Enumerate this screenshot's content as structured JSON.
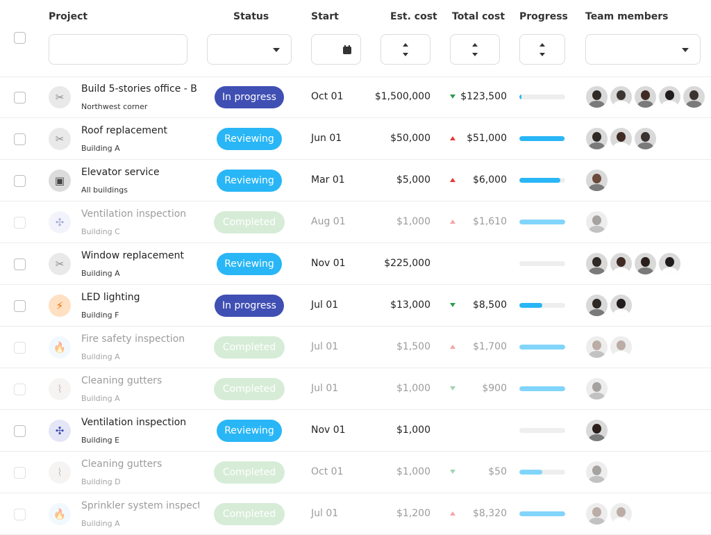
{
  "header": {
    "project": "Project",
    "status": "Status",
    "start": "Start",
    "est_cost": "Est. cost",
    "total_cost": "Total cost",
    "progress": "Progress",
    "team_members": "Team members"
  },
  "colors": {
    "in_progress": "#3f4fb3",
    "reviewing": "#29b6f6",
    "completed": "#a5d6a7",
    "progress_fill": "#29b6f6",
    "progress_fill_muted": "#81d4fa",
    "trend_up": "#e53935",
    "trend_down": "#2e9e4f"
  },
  "rows": [
    {
      "name": "Build 5-stories office - B",
      "location": "Northwest corner",
      "icon": "tools-icon",
      "status": "In progress",
      "start": "Oct 01",
      "est": "$1,500,000",
      "trend": "down",
      "total": "$123,500",
      "progress": 0.04,
      "muted": false,
      "team": [
        "#2f2a26",
        "#3b3633",
        "#402a24",
        "#201c1c",
        "#3a332f"
      ]
    },
    {
      "name": "Roof replacement",
      "location": "Building A",
      "icon": "tools-icon",
      "status": "Reviewing",
      "start": "Jun 01",
      "est": "$50,000",
      "trend": "up",
      "total": "$51,000",
      "progress": 0.98,
      "muted": false,
      "team": [
        "#2f2a26",
        "#402a24",
        "#3a332f"
      ]
    },
    {
      "name": "Elevator service",
      "location": "All buildings",
      "icon": "elevator-icon",
      "status": "Reviewing",
      "start": "Mar 01",
      "est": "$5,000",
      "trend": "up",
      "total": "$6,000",
      "progress": 0.9,
      "muted": false,
      "team": [
        "#6b4a3a"
      ]
    },
    {
      "name": "Ventilation inspection",
      "location": "Building C",
      "icon": "fan-icon",
      "status": "Completed",
      "start": "Aug 01",
      "est": "$1,000",
      "trend": "up",
      "total": "$1,610",
      "progress": 1.0,
      "muted": true,
      "team": [
        "#3a332f"
      ]
    },
    {
      "name": "Window replacement",
      "location": "Building A",
      "icon": "tools-icon",
      "status": "Reviewing",
      "start": "Nov 01",
      "est": "$225,000",
      "trend": "",
      "total": "",
      "progress": 0.0,
      "muted": false,
      "team": [
        "#2f2a26",
        "#402a24",
        "#2a1f1b",
        "#201c1c"
      ]
    },
    {
      "name": "LED lighting",
      "location": "Building F",
      "icon": "lightning-icon",
      "status": "In progress",
      "start": "Jul 01",
      "est": "$13,000",
      "trend": "down",
      "total": "$8,500",
      "progress": 0.5,
      "muted": false,
      "team": [
        "#2f2a26",
        "#201c1c"
      ]
    },
    {
      "name": "Fire safety inspection",
      "location": "Building A",
      "icon": "fire-icon",
      "status": "Completed",
      "start": "Jul 01",
      "est": "$1,500",
      "trend": "up",
      "total": "$1,700",
      "progress": 1.0,
      "muted": true,
      "team": [
        "#6b4a3a",
        "#6b4a3a"
      ]
    },
    {
      "name": "Cleaning gutters",
      "location": "Building A",
      "icon": "broom-icon",
      "status": "Completed",
      "start": "Jul 01",
      "est": "$1,000",
      "trend": "down",
      "total": "$900",
      "progress": 1.0,
      "muted": true,
      "team": [
        "#3a332f"
      ]
    },
    {
      "name": "Ventilation inspection",
      "location": "Building E",
      "icon": "fan-icon",
      "status": "Reviewing",
      "start": "Nov 01",
      "est": "$1,000",
      "trend": "",
      "total": "",
      "progress": 0.0,
      "muted": false,
      "team": [
        "#2a1f1b"
      ]
    },
    {
      "name": "Cleaning gutters",
      "location": "Building D",
      "icon": "broom-icon",
      "status": "Completed",
      "start": "Oct 01",
      "est": "$1,000",
      "trend": "down",
      "total": "$50",
      "progress": 0.5,
      "muted": true,
      "team": [
        "#3a332f"
      ]
    },
    {
      "name": "Sprinkler system inspect",
      "location": "Building A",
      "icon": "fire-icon",
      "status": "Completed",
      "start": "Jul 01",
      "est": "$1,200",
      "trend": "up",
      "total": "$8,320",
      "progress": 1.0,
      "muted": true,
      "team": [
        "#6b4a3a",
        "#6b4a3a"
      ]
    }
  ]
}
